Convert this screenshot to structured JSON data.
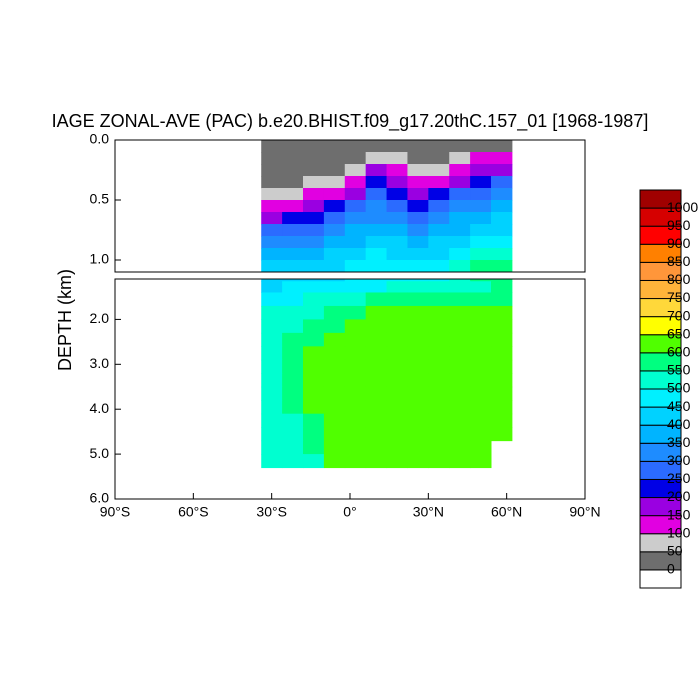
{
  "chart_data": {
    "type": "contour",
    "title": "IAGE ZONAL-AVE (PAC) b.e20.BHIST.f09_g17.20thC.157_01 [1968-1987]",
    "ylabel": "DEPTH (km)",
    "xlim": [
      -90,
      90
    ],
    "xticks": [
      {
        "value": -90,
        "label": "90°S"
      },
      {
        "value": -60,
        "label": "60°S"
      },
      {
        "value": -30,
        "label": "30°S"
      },
      {
        "value": 0,
        "label": "0°"
      },
      {
        "value": 30,
        "label": "30°N"
      },
      {
        "value": 60,
        "label": "60°N"
      },
      {
        "value": 90,
        "label": "90°N"
      }
    ],
    "panels": [
      {
        "ylim": [
          0,
          1.1
        ],
        "yticks": [
          {
            "value": 0,
            "label": "0.0"
          },
          {
            "value": 0.5,
            "label": "0.5"
          },
          {
            "value": 1,
            "label": "1.0"
          }
        ]
      },
      {
        "ylim": [
          1.1,
          6
        ],
        "yticks": [
          {
            "value": 2,
            "label": "2.0"
          },
          {
            "value": 3,
            "label": "3.0"
          },
          {
            "value": 4,
            "label": "4.0"
          },
          {
            "value": 5,
            "label": "5.0"
          },
          {
            "value": 6,
            "label": "6.0"
          }
        ]
      }
    ],
    "x": [
      -30,
      -22,
      -14,
      -6,
      2,
      10,
      18,
      26,
      34,
      42,
      50,
      58
    ],
    "y": [
      0.05,
      0.15,
      0.25,
      0.35,
      0.45,
      0.55,
      0.65,
      0.75,
      0.85,
      0.95,
      1.05,
      1.25,
      1.55,
      1.85,
      2.15,
      2.45,
      2.75,
      3.05,
      3.35,
      3.65,
      3.95,
      4.25,
      4.55,
      4.85,
      5.15
    ],
    "z": [
      [
        20,
        20,
        20,
        20,
        20,
        30,
        25,
        20,
        20,
        25,
        30,
        40
      ],
      [
        25,
        25,
        30,
        30,
        40,
        90,
        50,
        35,
        35,
        60,
        100,
        120
      ],
      [
        30,
        35,
        40,
        45,
        70,
        150,
        110,
        60,
        70,
        130,
        170,
        190
      ],
      [
        40,
        45,
        60,
        80,
        120,
        210,
        170,
        110,
        130,
        190,
        230,
        250
      ],
      [
        70,
        85,
        110,
        140,
        190,
        260,
        230,
        180,
        200,
        250,
        280,
        300
      ],
      [
        110,
        140,
        180,
        210,
        250,
        300,
        280,
        240,
        260,
        300,
        330,
        350
      ],
      [
        180,
        210,
        240,
        260,
        300,
        340,
        320,
        290,
        310,
        350,
        370,
        400
      ],
      [
        250,
        270,
        290,
        310,
        350,
        380,
        360,
        330,
        350,
        390,
        420,
        440
      ],
      [
        300,
        320,
        340,
        360,
        390,
        420,
        400,
        380,
        400,
        440,
        460,
        480
      ],
      [
        350,
        370,
        390,
        400,
        430,
        450,
        440,
        420,
        440,
        480,
        500,
        520
      ],
      [
        410,
        420,
        430,
        440,
        460,
        480,
        470,
        460,
        490,
        520,
        550,
        560
      ],
      [
        440,
        450,
        460,
        470,
        480,
        490,
        500,
        510,
        520,
        530,
        540,
        560
      ],
      [
        470,
        480,
        500,
        520,
        540,
        550,
        560,
        560,
        570,
        570,
        580,
        590
      ],
      [
        500,
        510,
        540,
        560,
        580,
        600,
        610,
        610,
        610,
        610,
        610,
        610
      ],
      [
        520,
        540,
        560,
        590,
        610,
        620,
        625,
        625,
        625,
        625,
        620,
        620
      ],
      [
        530,
        560,
        580,
        610,
        620,
        625,
        625,
        625,
        625,
        625,
        625,
        625
      ],
      [
        540,
        570,
        600,
        620,
        625,
        625,
        625,
        625,
        625,
        625,
        625,
        625
      ],
      [
        540,
        570,
        610,
        620,
        625,
        625,
        625,
        625,
        625,
        625,
        625,
        625
      ],
      [
        540,
        570,
        610,
        620,
        625,
        625,
        625,
        625,
        625,
        625,
        625,
        625
      ],
      [
        540,
        560,
        610,
        620,
        625,
        625,
        625,
        625,
        625,
        625,
        625,
        625
      ],
      [
        540,
        550,
        600,
        620,
        625,
        625,
        625,
        625,
        625,
        625,
        625,
        625
      ],
      [
        530,
        540,
        590,
        620,
        625,
        625,
        625,
        625,
        625,
        625,
        625,
        625
      ],
      [
        530,
        540,
        580,
        620,
        625,
        625,
        625,
        625,
        625,
        625,
        625,
        625
      ],
      [
        530,
        530,
        560,
        610,
        625,
        625,
        625,
        625,
        625,
        625,
        625,
        null
      ],
      [
        530,
        530,
        540,
        610,
        625,
        625,
        625,
        625,
        625,
        625,
        625,
        null
      ]
    ],
    "levels": [
      0,
      50,
      100,
      150,
      200,
      250,
      300,
      350,
      400,
      450,
      500,
      550,
      600,
      650,
      700,
      750,
      800,
      850,
      900,
      950,
      1000
    ],
    "colors": [
      "#ffffff",
      "#6e6e6e",
      "#cccccc",
      "#e100e1",
      "#9a00e1",
      "#0000e6",
      "#2b6bff",
      "#1e8cff",
      "#00b4ff",
      "#00d2ff",
      "#00f0ff",
      "#00ffd0",
      "#00ff80",
      "#50ff00",
      "#ffff00",
      "#ffd83a",
      "#ffb43a",
      "#ff963a",
      "#ff8000",
      "#ff0000",
      "#d60000",
      "#a00000"
    ]
  }
}
